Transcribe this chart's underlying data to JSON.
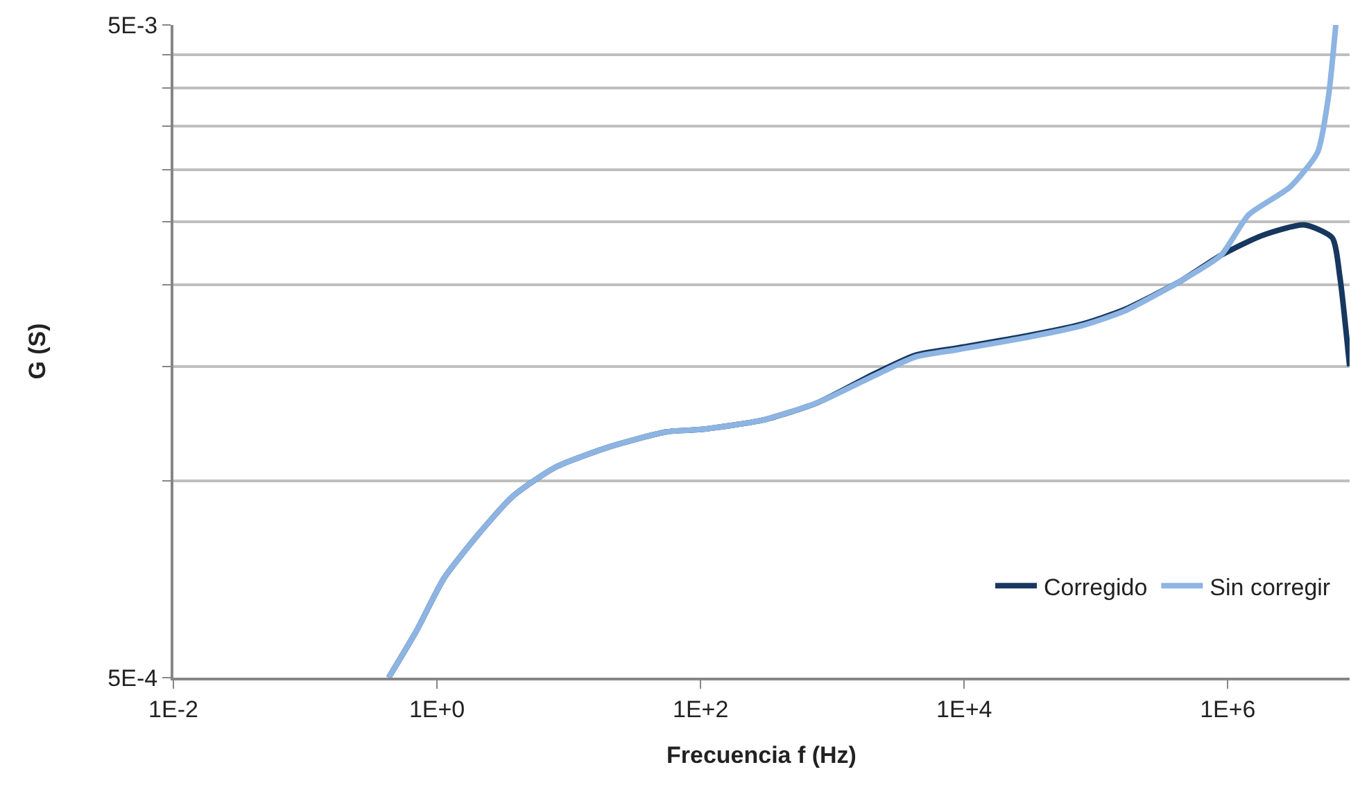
{
  "chart_data": {
    "type": "line",
    "xlabel": "Frecuencia f (Hz)",
    "ylabel": "G (S)",
    "log": "xy",
    "grid": "y",
    "legend": "bottom right",
    "line_style": "solid",
    "marker": "none",
    "xlim": [
      0.01,
      8400000
    ],
    "xticks": [
      {
        "value": 0.01,
        "label": "1E-2"
      },
      {
        "value": 1,
        "label": "1E+0"
      },
      {
        "value": 100,
        "label": "1E+2"
      },
      {
        "value": 10000,
        "label": "1E+4"
      },
      {
        "value": 1000000,
        "label": "1E+6"
      }
    ],
    "ylim": [
      0.0005,
      0.005
    ],
    "yticks": [
      {
        "value": 0.0005,
        "label": "5E-4"
      },
      {
        "value": 0.001,
        "label": null
      },
      {
        "value": 0.0015,
        "label": null
      },
      {
        "value": 0.002,
        "label": null
      },
      {
        "value": 0.0025,
        "label": null
      },
      {
        "value": 0.003,
        "label": null
      },
      {
        "value": 0.0035,
        "label": null
      },
      {
        "value": 0.004,
        "label": null
      },
      {
        "value": 0.0045,
        "label": null
      },
      {
        "value": 0.005,
        "label": "5E-3"
      }
    ],
    "series": [
      {
        "name": "Corregido",
        "color": "#17375e",
        "x": [
          0.43,
          0.7,
          1.13,
          2.07,
          3.8,
          7.9,
          20.7,
          55,
          100,
          295,
          780,
          2070,
          4270,
          8850,
          29800,
          78000,
          162000,
          428000,
          890000,
          1830000,
          3800000,
          6200000,
          7100000,
          8400000
        ],
        "values": [
          0.0005,
          0.00059,
          0.00071,
          0.00083,
          0.00095,
          0.00105,
          0.00113,
          0.00119,
          0.0012,
          0.00124,
          0.00132,
          0.00146,
          0.00156,
          0.0016,
          0.00167,
          0.00174,
          0.00183,
          0.00202,
          0.00222,
          0.00238,
          0.00247,
          0.00236,
          0.00205,
          0.0015
        ]
      },
      {
        "name": "Sin corregir",
        "color": "#8db4e2",
        "x": [
          0.43,
          0.7,
          1.13,
          2.07,
          3.8,
          7.9,
          20.7,
          55,
          100,
          295,
          780,
          2070,
          4270,
          8850,
          29800,
          78000,
          162000,
          428000,
          890000,
          1440000,
          2950000,
          4800000,
          5800000,
          6600000
        ],
        "values": [
          0.0005,
          0.00059,
          0.00071,
          0.00083,
          0.00095,
          0.00105,
          0.00113,
          0.00119,
          0.0012,
          0.00124,
          0.00132,
          0.00145,
          0.00155,
          0.00159,
          0.00166,
          0.00173,
          0.00182,
          0.00202,
          0.00222,
          0.00256,
          0.00282,
          0.00319,
          0.00388,
          0.005
        ]
      }
    ]
  }
}
